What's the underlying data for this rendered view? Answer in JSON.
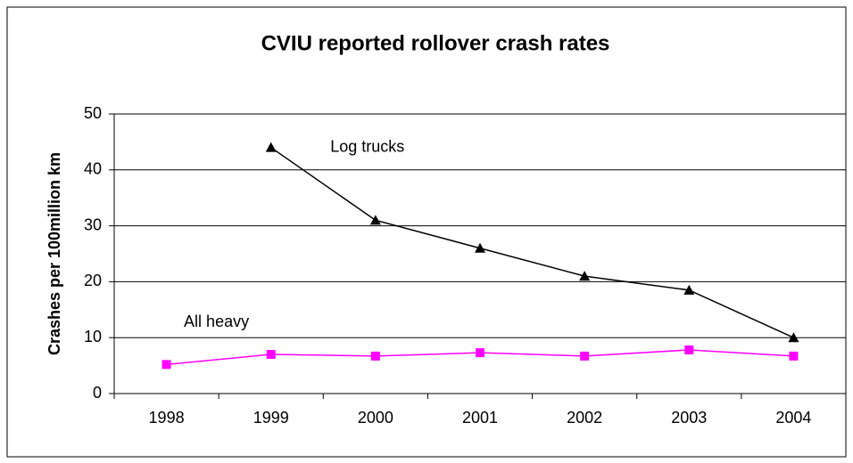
{
  "chart_data": {
    "type": "line",
    "title": "CVIU reported rollover crash rates",
    "y_label": "Crashes per 100million km",
    "categories": [
      "1998",
      "1999",
      "2000",
      "2001",
      "2002",
      "2003",
      "2004"
    ],
    "series": [
      {
        "name": "Log trucks",
        "color": "#000000",
        "marker": "triangle",
        "values": [
          null,
          44,
          31,
          26,
          21,
          18.5,
          10
        ]
      },
      {
        "name": "All heavy",
        "color": "#ff00ff",
        "marker": "square",
        "values": [
          5.2,
          7.0,
          6.7,
          7.3,
          6.7,
          7.8,
          6.7
        ]
      }
    ],
    "ylim": [
      0,
      50
    ],
    "yticks": [
      0,
      10,
      20,
      30,
      40,
      50
    ],
    "grid": true
  }
}
